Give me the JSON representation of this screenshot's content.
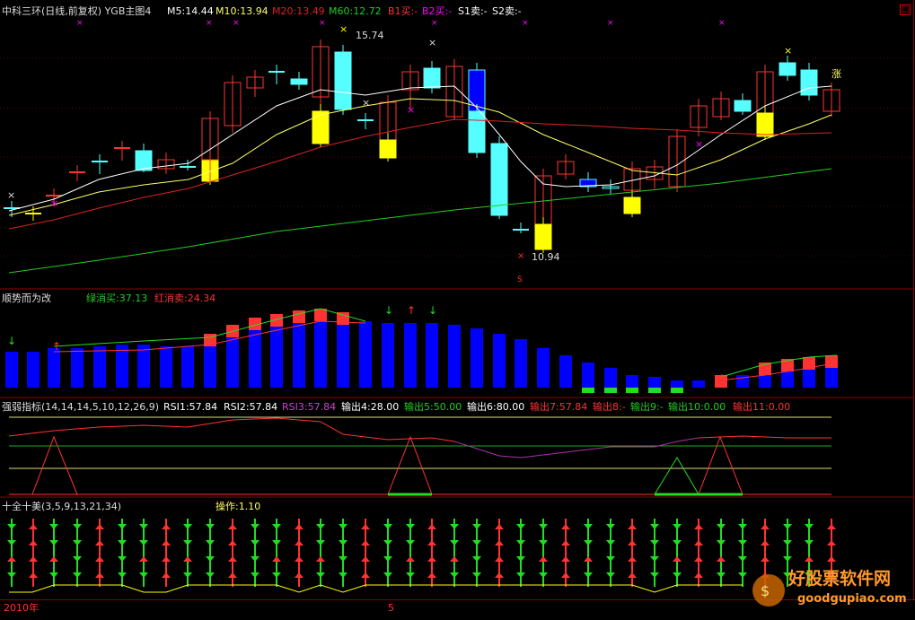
{
  "panel1": {
    "title": "中科三环(日线,前复权) YGB主图4",
    "m5": "M5:14.44",
    "m10": "M10:13.94",
    "m20": "M20:13.49",
    "m60": "M60:12.72",
    "b1": "B1买:-",
    "b2": "B2买:-",
    "s1": "S1卖:-",
    "s2": "S2卖:-",
    "high_label": "15.74",
    "low_label": "10.94",
    "zhang_label": "涨",
    "s_marker": "S"
  },
  "panel2": {
    "title": "顺势而为改",
    "green": "绿消买:37.13",
    "red": "红消卖:24.34"
  },
  "panel3": {
    "title": "强弱指标(14,14,14,5,10,12,26,9)",
    "rsi1": "RSI1:57.84",
    "rsi2": "RSI2:57.84",
    "rsi3": "RSI3:57.84",
    "o4": "输出4:28.00",
    "o5": "输出5:50.00",
    "o6": "输出6:80.00",
    "o7": "输出7:57.84",
    "o8": "输出8:-",
    "o9": "输出9:-",
    "o10": "输出10:0.00",
    "o11": "输出11:0.00"
  },
  "panel4": {
    "title": "十全十美(3,5,9,13,21,34)",
    "op": "操作:1.10"
  },
  "axis": {
    "year": "2010年",
    "month": "5"
  },
  "watermark": {
    "cn": "好股票软件网",
    "url": "goodgupiao.com"
  },
  "colors": {
    "bg": "#000000",
    "up": "#ff3333",
    "down_cyan": "#55ffff",
    "yellow": "#ffff00",
    "blue": "#0000ff",
    "green": "#00cc00",
    "magenta": "#ff00ff",
    "m5": "#ffffff",
    "m10": "#ffff66",
    "m20": "#dd2222",
    "m60": "#22cc22"
  }
}
